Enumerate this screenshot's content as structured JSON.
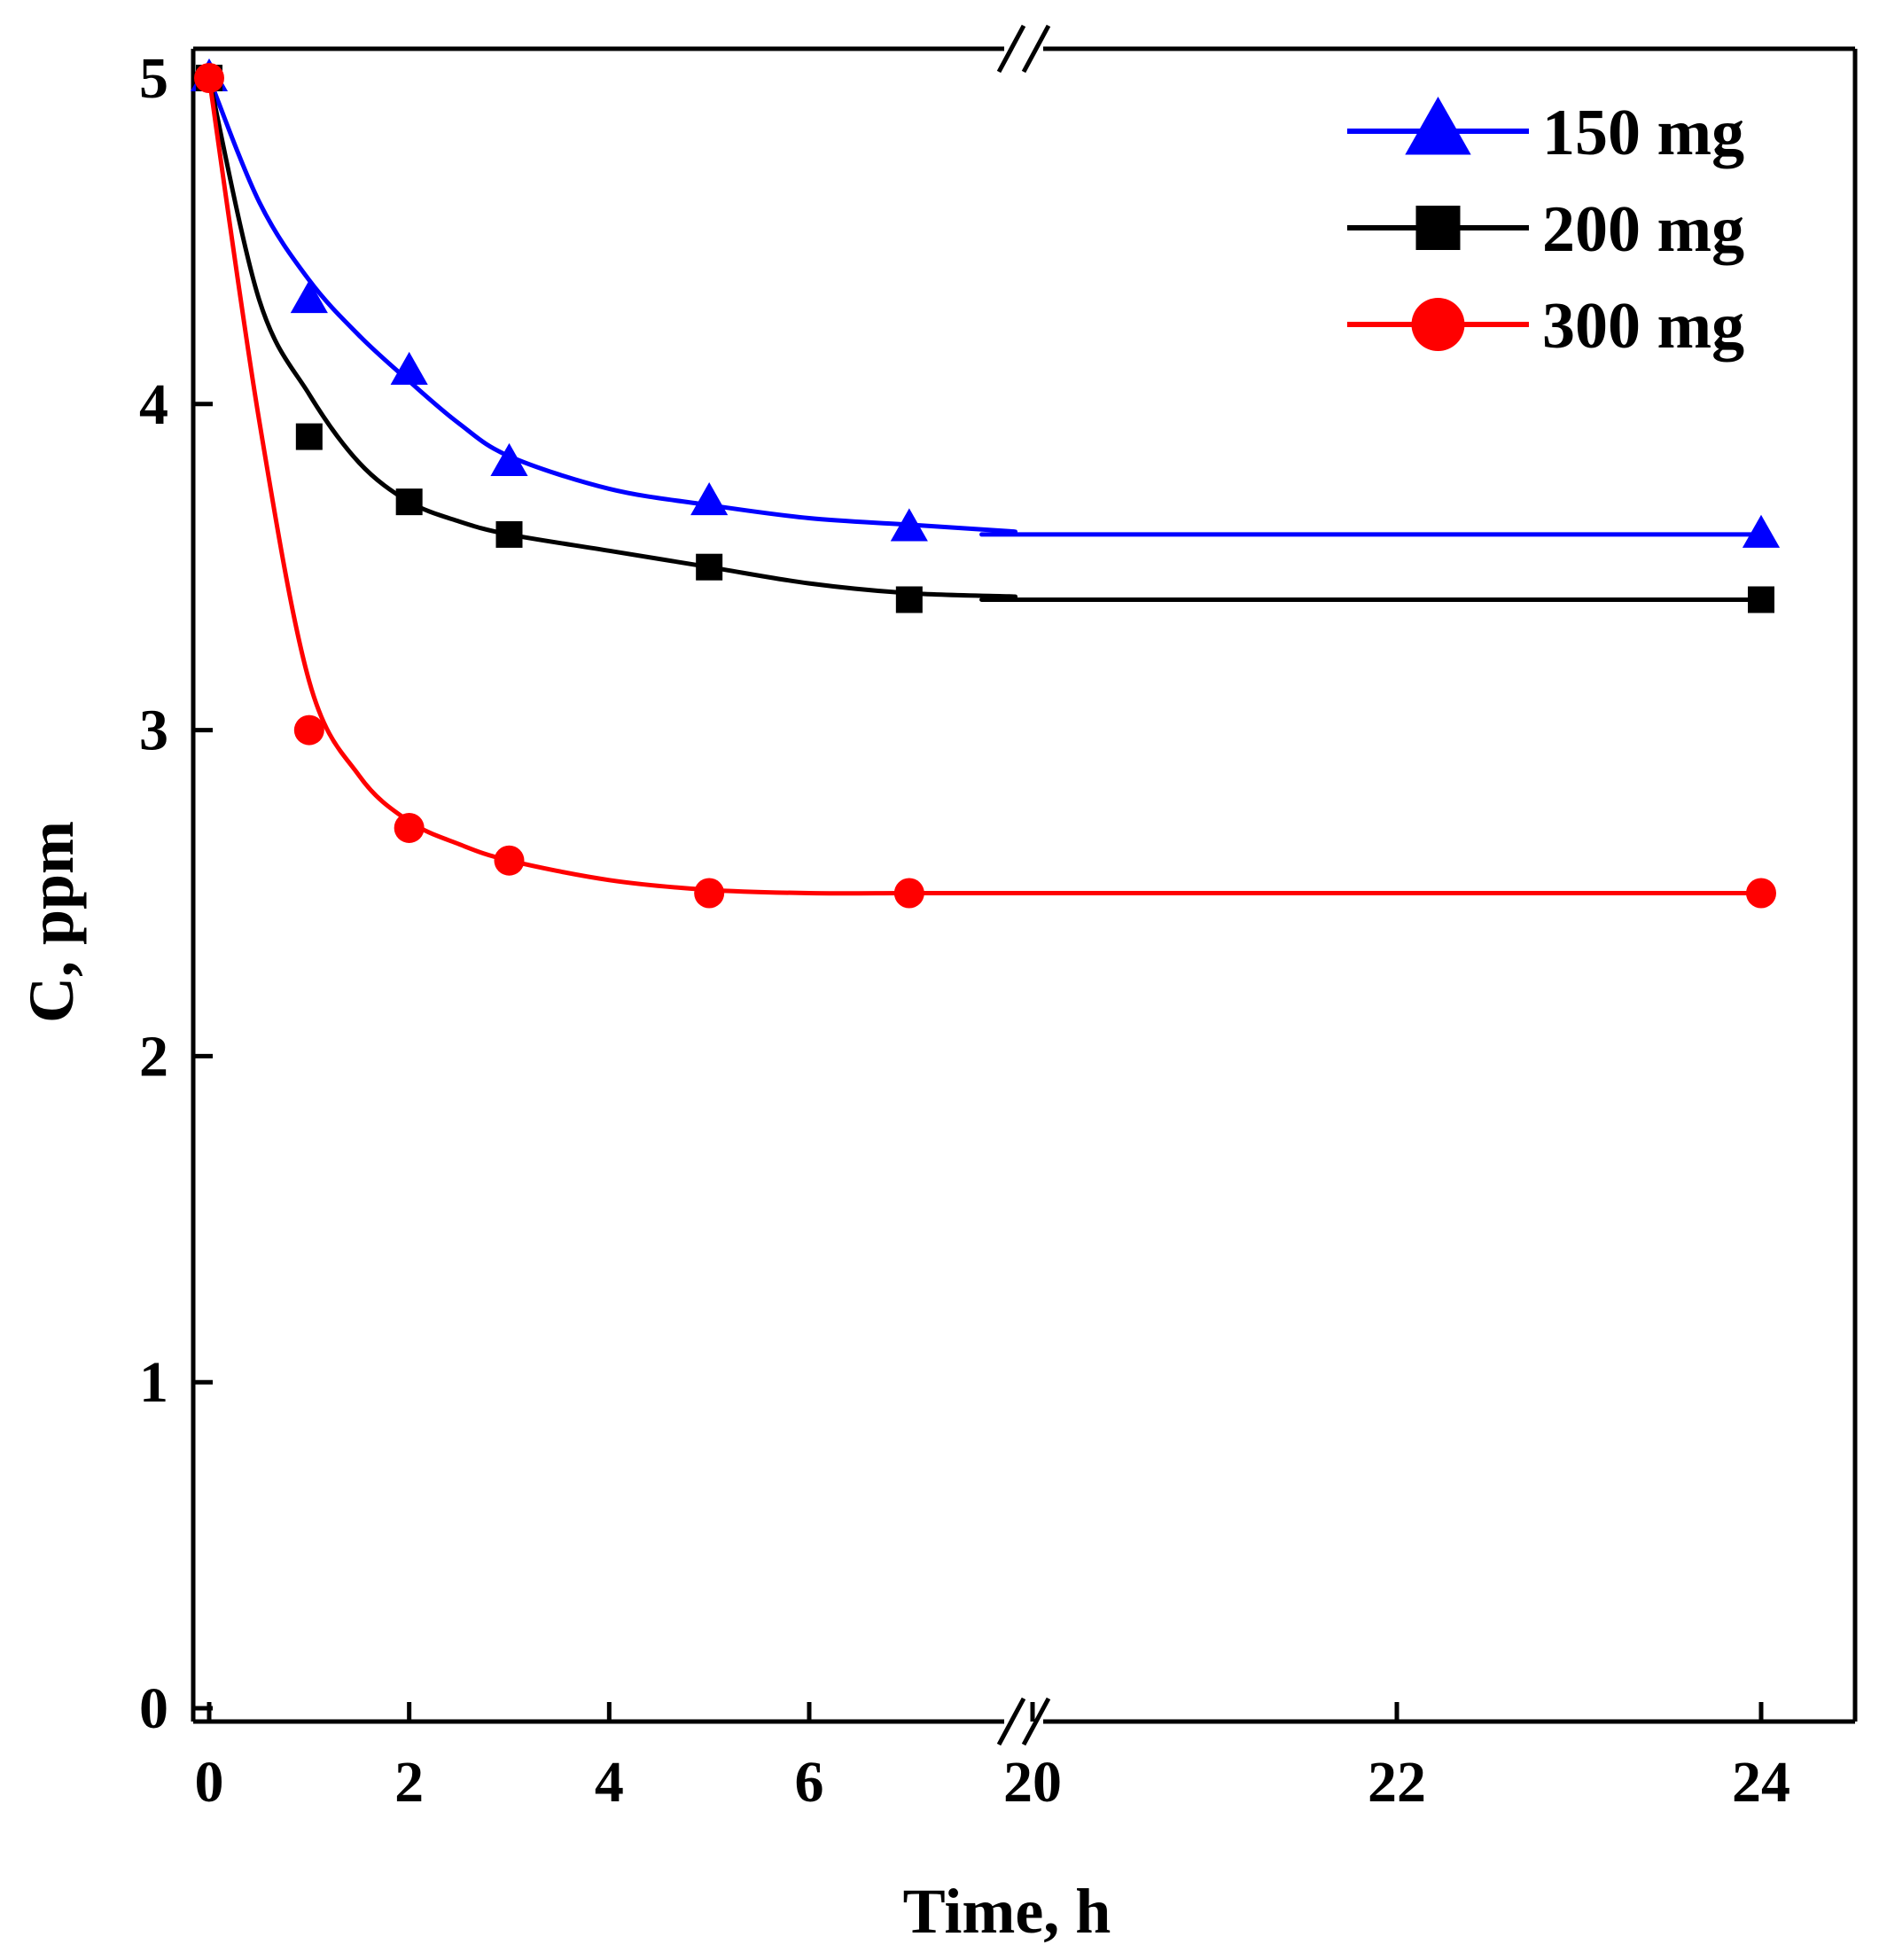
{
  "chart_data": {
    "type": "line",
    "xlabel": "Time, h",
    "ylabel": "C, ppm",
    "broken_x_axis": true,
    "x_segments": [
      {
        "range": [
          -0.2,
          8.2
        ],
        "ticks": [
          0,
          2,
          4,
          6
        ]
      },
      {
        "range": [
          19.6,
          24.5
        ],
        "ticks": [
          20,
          22,
          24
        ]
      }
    ],
    "ylim": [
      0,
      5.1
    ],
    "yticks": [
      0,
      1,
      2,
      3,
      4,
      5
    ],
    "grid": false,
    "legend_position": "top-right",
    "series": [
      {
        "name": "150 mg",
        "color": "#0000ff",
        "marker": "triangle",
        "x": [
          0,
          1,
          2,
          3,
          5,
          7,
          24
        ],
        "y": [
          5.0,
          4.32,
          4.1,
          3.82,
          3.7,
          3.62,
          3.6
        ],
        "fit_x": [
          0,
          0.5,
          1,
          1.5,
          2,
          2.5,
          3,
          4,
          5,
          6,
          7,
          8,
          20,
          24
        ],
        "fit_y": [
          5.0,
          4.62,
          4.38,
          4.21,
          4.07,
          3.94,
          3.84,
          3.74,
          3.69,
          3.65,
          3.63,
          3.61,
          3.6,
          3.6
        ]
      },
      {
        "name": "200 mg",
        "color": "#000000",
        "marker": "square",
        "x": [
          0,
          1,
          2,
          3,
          5,
          7,
          24
        ],
        "y": [
          5.0,
          3.9,
          3.7,
          3.6,
          3.5,
          3.4,
          3.4
        ],
        "fit_x": [
          0,
          0.5,
          1,
          1.5,
          2,
          2.5,
          3,
          4,
          5,
          6,
          7,
          8,
          20,
          24
        ],
        "fit_y": [
          5.0,
          4.32,
          4.03,
          3.82,
          3.7,
          3.64,
          3.6,
          3.55,
          3.5,
          3.45,
          3.42,
          3.41,
          3.4,
          3.4
        ]
      },
      {
        "name": "300 mg",
        "color": "#ff0000",
        "marker": "circle",
        "x": [
          0,
          1,
          2,
          3,
          5,
          7,
          24
        ],
        "y": [
          5.0,
          3.0,
          2.7,
          2.6,
          2.5,
          2.5,
          2.5
        ],
        "fit_x": [
          0,
          0.5,
          1,
          1.5,
          2,
          2.5,
          3,
          4,
          5,
          6,
          7,
          8,
          20,
          24
        ],
        "fit_y": [
          5.0,
          3.95,
          3.15,
          2.86,
          2.72,
          2.65,
          2.6,
          2.54,
          2.51,
          2.5,
          2.5,
          2.5,
          2.5,
          2.5
        ]
      }
    ]
  }
}
